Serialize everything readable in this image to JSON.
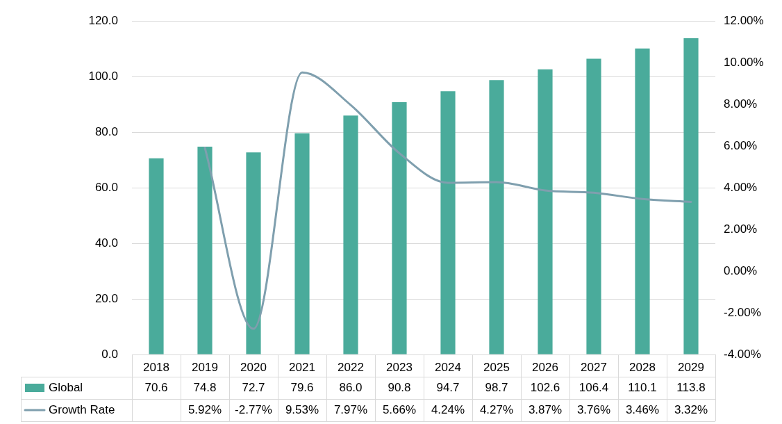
{
  "chart_data": {
    "type": "bar",
    "categories": [
      "2018",
      "2019",
      "2020",
      "2021",
      "2022",
      "2023",
      "2024",
      "2025",
      "2026",
      "2027",
      "2028",
      "2029"
    ],
    "series": [
      {
        "name": "Global",
        "color": "#4aab9b",
        "values": [
          70.6,
          74.8,
          72.7,
          79.6,
          86.0,
          90.8,
          94.7,
          98.7,
          102.6,
          106.4,
          110.1,
          113.8
        ],
        "value_labels": [
          "70.6",
          "74.8",
          "72.7",
          "79.6",
          "86.0",
          "90.8",
          "94.7",
          "98.7",
          "102.6",
          "106.4",
          "110.1",
          "113.8"
        ]
      },
      {
        "name": "Growth Rate",
        "type": "line",
        "axis": "y2",
        "color": "#7f9fae",
        "values": [
          null,
          5.92,
          -2.77,
          9.53,
          7.97,
          5.66,
          4.24,
          4.27,
          3.87,
          3.76,
          3.46,
          3.32
        ],
        "value_labels": [
          null,
          "5.92%",
          "-2.77%",
          "9.53%",
          "7.97%",
          "5.66%",
          "4.24%",
          "4.27%",
          "3.87%",
          "3.76%",
          "3.46%",
          "3.32%"
        ]
      }
    ],
    "ylim": [
      0,
      120
    ],
    "yticks": [
      {
        "value": 0,
        "label": "0.0"
      },
      {
        "value": 20,
        "label": "20.0"
      },
      {
        "value": 40,
        "label": "40.0"
      },
      {
        "value": 60,
        "label": "60.0"
      },
      {
        "value": 80,
        "label": "80.0"
      },
      {
        "value": 100,
        "label": "100.0"
      },
      {
        "value": 120,
        "label": "120.0"
      }
    ],
    "y2lim": [
      -4,
      12
    ],
    "y2ticks": [
      {
        "value": -4,
        "label": "-4.00%"
      },
      {
        "value": -2,
        "label": "-2.00%"
      },
      {
        "value": 0,
        "label": "0.00%"
      },
      {
        "value": 2,
        "label": "2.00%"
      },
      {
        "value": 4,
        "label": "4.00%"
      },
      {
        "value": 6,
        "label": "6.00%"
      },
      {
        "value": 8,
        "label": "8.00%"
      },
      {
        "value": 10,
        "label": "10.00%"
      },
      {
        "value": 12,
        "label": "12.00%"
      }
    ],
    "grid": "y",
    "legend": "bottom",
    "marker": "none",
    "line_style": "solid"
  }
}
